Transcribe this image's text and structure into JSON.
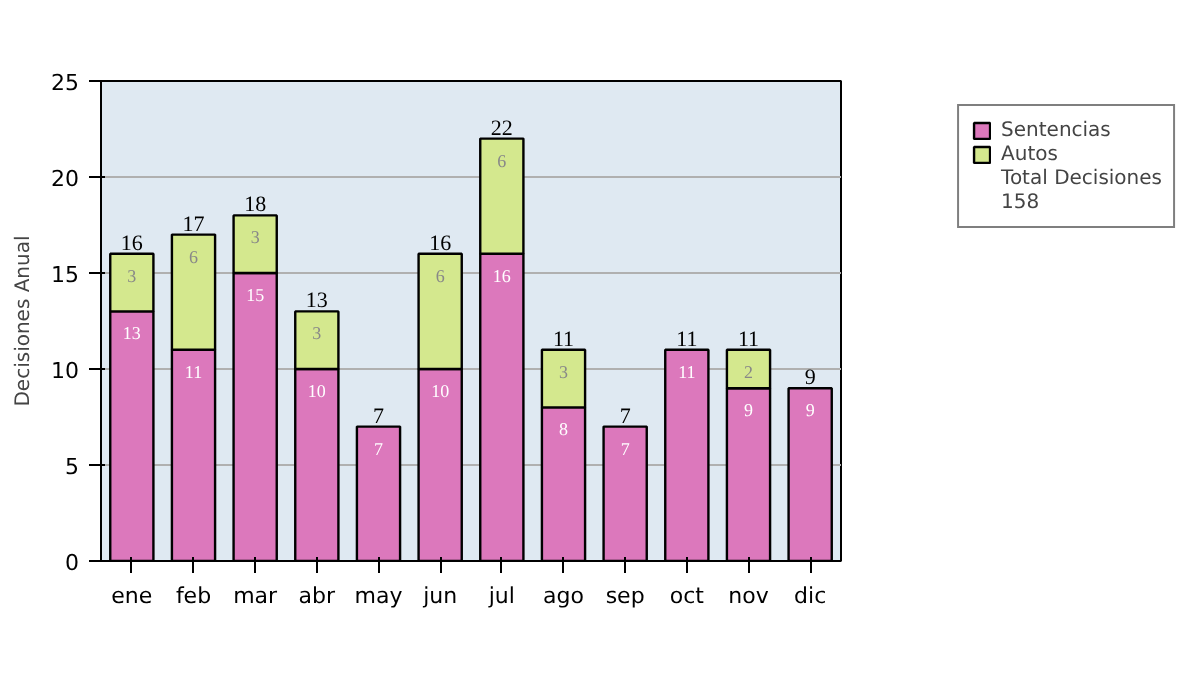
{
  "chart_data": {
    "type": "bar",
    "stacked": true,
    "ylabel": "Decisiones Anual",
    "categories": [
      "ene",
      "feb",
      "mar",
      "abr",
      "may",
      "jun",
      "jul",
      "ago",
      "sep",
      "oct",
      "nov",
      "dic"
    ],
    "series": [
      {
        "name": "Sentencias",
        "color": "#dc78bc",
        "values": [
          13,
          11,
          15,
          10,
          7,
          10,
          16,
          8,
          7,
          11,
          9,
          9
        ]
      },
      {
        "name": "Autos",
        "color": "#d4e88e",
        "values": [
          3,
          6,
          3,
          3,
          null,
          6,
          6,
          3,
          null,
          null,
          2,
          null
        ]
      }
    ],
    "data_labels": true,
    "totals": [
      "16",
      "17",
      "18",
      "13",
      "7",
      "16",
      "22",
      "11",
      "7",
      "11",
      "11",
      "9"
    ],
    "ylim": [
      0,
      25
    ],
    "yticks": [
      0,
      5,
      10,
      15,
      20,
      25
    ],
    "grid": "y",
    "legend": "right",
    "annotations": [
      "Total Decisiones",
      "158"
    ]
  }
}
